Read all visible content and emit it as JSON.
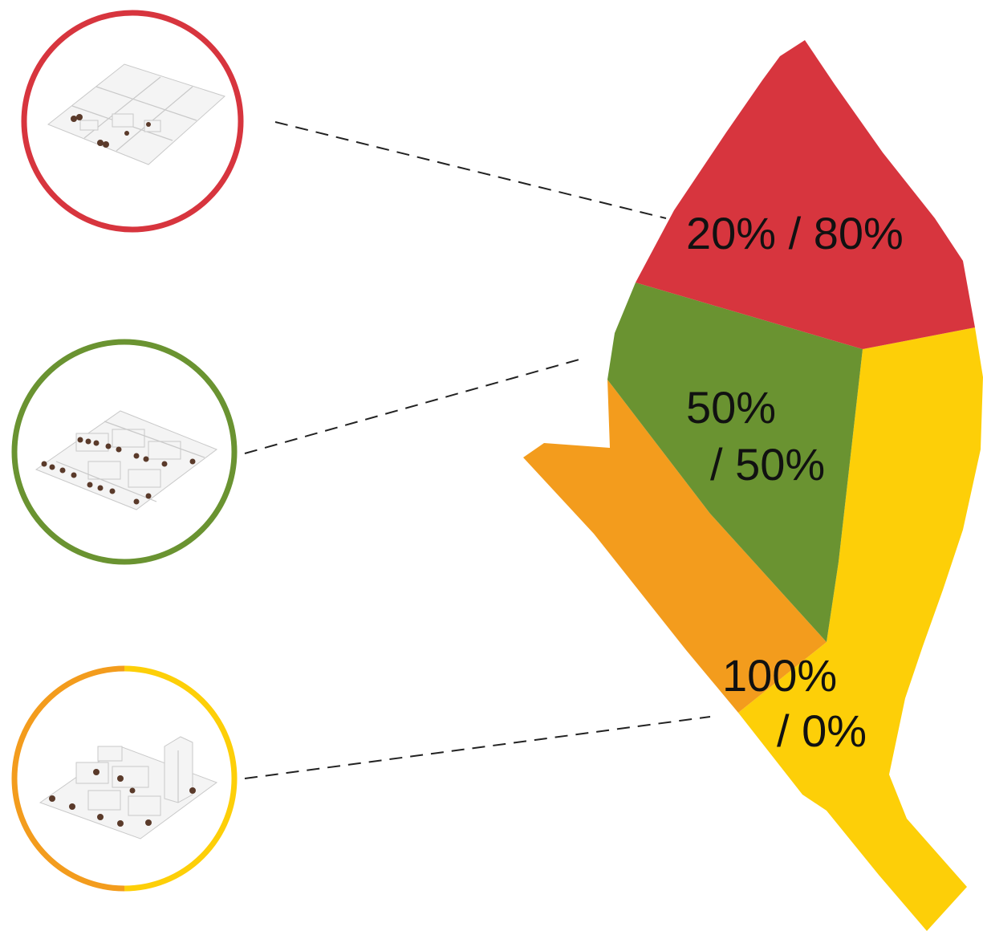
{
  "zones": [
    {
      "id": "red",
      "color": "#d7353e",
      "label_line1": "20% / 80%",
      "label_line2": ""
    },
    {
      "id": "green",
      "color": "#6a9331",
      "label_line1": "50%",
      "label_line2": "/ 50%"
    },
    {
      "id": "mixed",
      "color": "#fdcf08",
      "secondary_color": "#f39c1d",
      "label_line1": "100%",
      "label_line2": "/ 0%"
    }
  ],
  "rings": [
    {
      "zone": "red",
      "stroke": "#d7353e"
    },
    {
      "zone": "green",
      "stroke": "#6a9331"
    },
    {
      "zone": "mixed",
      "stroke_left": "#f39c1d",
      "stroke_right": "#fdcf08"
    }
  ]
}
